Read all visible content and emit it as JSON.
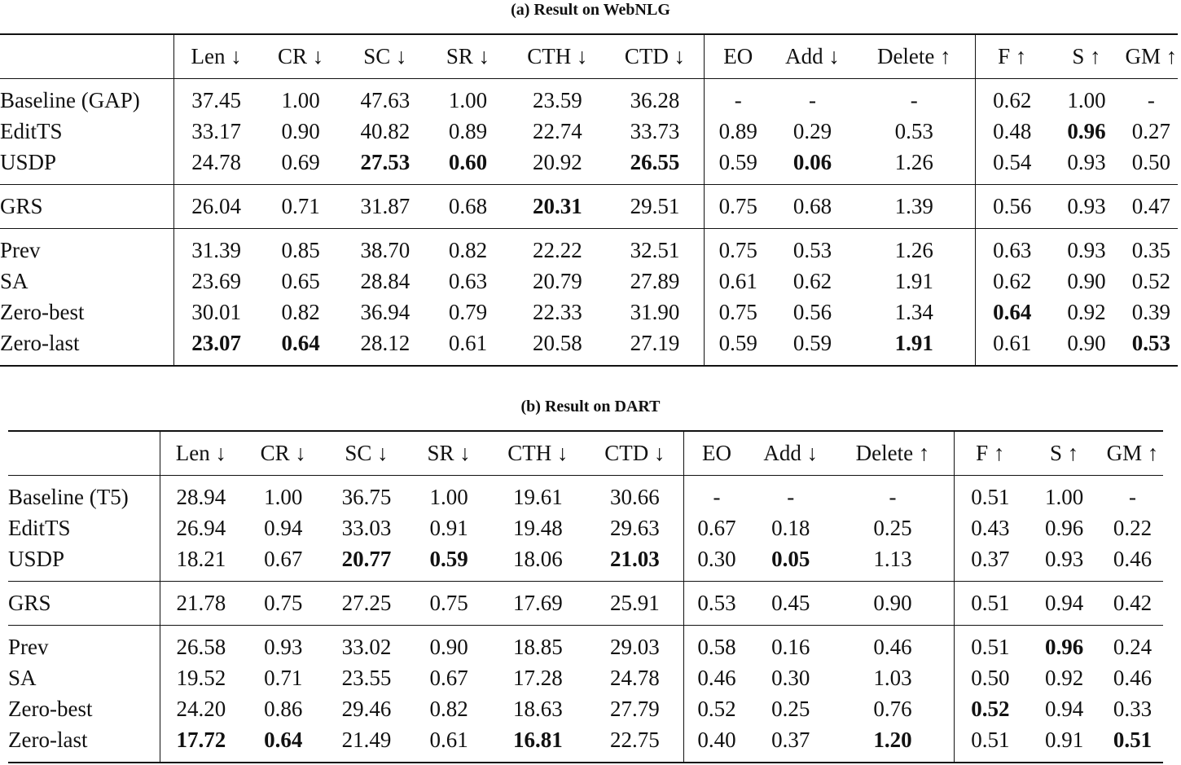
{
  "tables": [
    {
      "caption": "(a) Result on WebNLG",
      "columns": [
        "Len ↓",
        "CR ↓",
        "SC ↓",
        "SR ↓",
        "CTH ↓",
        "CTD ↓",
        "EO",
        "Add ↓",
        "Delete ↑",
        "F ↑",
        "S ↑",
        "GM ↑"
      ],
      "groups": [
        [
          {
            "name": "Baseline (GAP)",
            "cells": [
              "37.45",
              "1.00",
              "47.63",
              "1.00",
              "23.59",
              "36.28",
              "-",
              "-",
              "-",
              "0.62",
              "1.00",
              "-"
            ],
            "bold": []
          },
          {
            "name": "EditTS",
            "cells": [
              "33.17",
              "0.90",
              "40.82",
              "0.89",
              "22.74",
              "33.73",
              "0.89",
              "0.29",
              "0.53",
              "0.48",
              "0.96",
              "0.27"
            ],
            "bold": [
              10
            ]
          },
          {
            "name": "USDP",
            "cells": [
              "24.78",
              "0.69",
              "27.53",
              "0.60",
              "20.92",
              "26.55",
              "0.59",
              "0.06",
              "1.26",
              "0.54",
              "0.93",
              "0.50"
            ],
            "bold": [
              2,
              3,
              5,
              7
            ]
          }
        ],
        [
          {
            "name": "GRS",
            "cells": [
              "26.04",
              "0.71",
              "31.87",
              "0.68",
              "20.31",
              "29.51",
              "0.75",
              "0.68",
              "1.39",
              "0.56",
              "0.93",
              "0.47"
            ],
            "bold": [
              4
            ]
          }
        ],
        [
          {
            "name": "Prev",
            "cells": [
              "31.39",
              "0.85",
              "38.70",
              "0.82",
              "22.22",
              "32.51",
              "0.75",
              "0.53",
              "1.26",
              "0.63",
              "0.93",
              "0.35"
            ],
            "bold": []
          },
          {
            "name": "SA",
            "cells": [
              "23.69",
              "0.65",
              "28.84",
              "0.63",
              "20.79",
              "27.89",
              "0.61",
              "0.62",
              "1.91",
              "0.62",
              "0.90",
              "0.52"
            ],
            "bold": []
          },
          {
            "name": "Zero-best",
            "cells": [
              "30.01",
              "0.82",
              "36.94",
              "0.79",
              "22.33",
              "31.90",
              "0.75",
              "0.56",
              "1.34",
              "0.64",
              "0.92",
              "0.39"
            ],
            "bold": [
              9
            ]
          },
          {
            "name": "Zero-last",
            "cells": [
              "23.07",
              "0.64",
              "28.12",
              "0.61",
              "20.58",
              "27.19",
              "0.59",
              "0.59",
              "1.91",
              "0.61",
              "0.90",
              "0.53"
            ],
            "bold": [
              0,
              1,
              8,
              11
            ]
          }
        ]
      ]
    },
    {
      "caption": "(b) Result on DART",
      "columns": [
        "Len ↓",
        "CR ↓",
        "SC ↓",
        "SR ↓",
        "CTH ↓",
        "CTD ↓",
        "EO",
        "Add ↓",
        "Delete ↑",
        "F ↑",
        "S ↑",
        "GM ↑"
      ],
      "groups": [
        [
          {
            "name": "Baseline (T5)",
            "cells": [
              "28.94",
              "1.00",
              "36.75",
              "1.00",
              "19.61",
              "30.66",
              "-",
              "-",
              "-",
              "0.51",
              "1.00",
              "-"
            ],
            "bold": []
          },
          {
            "name": "EditTS",
            "cells": [
              "26.94",
              "0.94",
              "33.03",
              "0.91",
              "19.48",
              "29.63",
              "0.67",
              "0.18",
              "0.25",
              "0.43",
              "0.96",
              "0.22"
            ],
            "bold": []
          },
          {
            "name": "USDP",
            "cells": [
              "18.21",
              "0.67",
              "20.77",
              "0.59",
              "18.06",
              "21.03",
              "0.30",
              "0.05",
              "1.13",
              "0.37",
              "0.93",
              "0.46"
            ],
            "bold": [
              2,
              3,
              5,
              7
            ]
          }
        ],
        [
          {
            "name": "GRS",
            "cells": [
              "21.78",
              "0.75",
              "27.25",
              "0.75",
              "17.69",
              "25.91",
              "0.53",
              "0.45",
              "0.90",
              "0.51",
              "0.94",
              "0.42"
            ],
            "bold": []
          }
        ],
        [
          {
            "name": "Prev",
            "cells": [
              "26.58",
              "0.93",
              "33.02",
              "0.90",
              "18.85",
              "29.03",
              "0.58",
              "0.16",
              "0.46",
              "0.51",
              "0.96",
              "0.24"
            ],
            "bold": [
              10
            ]
          },
          {
            "name": "SA",
            "cells": [
              "19.52",
              "0.71",
              "23.55",
              "0.67",
              "17.28",
              "24.78",
              "0.46",
              "0.30",
              "1.03",
              "0.50",
              "0.92",
              "0.46"
            ],
            "bold": []
          },
          {
            "name": "Zero-best",
            "cells": [
              "24.20",
              "0.86",
              "29.46",
              "0.82",
              "18.63",
              "27.79",
              "0.52",
              "0.25",
              "0.76",
              "0.52",
              "0.94",
              "0.33"
            ],
            "bold": [
              9
            ]
          },
          {
            "name": "Zero-last",
            "cells": [
              "17.72",
              "0.64",
              "21.49",
              "0.61",
              "16.81",
              "22.75",
              "0.40",
              "0.37",
              "1.20",
              "0.51",
              "0.91",
              "0.51"
            ],
            "bold": [
              0,
              1,
              4,
              8,
              11
            ]
          }
        ]
      ]
    }
  ]
}
